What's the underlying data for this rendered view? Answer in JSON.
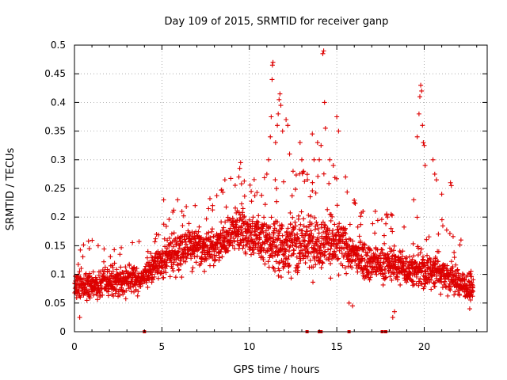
{
  "chart_data": {
    "type": "scatter",
    "title": "Day 109 of 2015, SRMTID for receiver ganp",
    "xlabel": "GPS time / hours",
    "ylabel": "SRMTID / TECUs",
    "xlim": [
      0,
      23.6
    ],
    "ylim": [
      0,
      0.5
    ],
    "xticks": [
      0,
      5,
      10,
      15,
      20
    ],
    "yticks": [
      0,
      0.05,
      0.1,
      0.15,
      0.2,
      0.25,
      0.3,
      0.35,
      0.4,
      0.45,
      0.5
    ],
    "ytick_labels": [
      "0",
      "0.05",
      "0.1",
      "0.15",
      "0.2",
      "0.25",
      "0.3",
      "0.35",
      "0.4",
      "0.45",
      "0.5"
    ],
    "grid": true,
    "marker": "+",
    "color": "#dd0000",
    "envelope": {
      "x": [
        0,
        1,
        2,
        3,
        3.8,
        4.5,
        5.5,
        6.5,
        7.5,
        8.5,
        9.3,
        10,
        11,
        12,
        13,
        14,
        15,
        16,
        17,
        18,
        19,
        20,
        21,
        22,
        22.8
      ],
      "low": [
        0.05,
        0.05,
        0.06,
        0.06,
        0.07,
        0.08,
        0.09,
        0.1,
        0.1,
        0.11,
        0.13,
        0.12,
        0.09,
        0.08,
        0.08,
        0.09,
        0.09,
        0.09,
        0.08,
        0.08,
        0.07,
        0.06,
        0.06,
        0.05,
        0.05
      ],
      "high": [
        0.11,
        0.11,
        0.12,
        0.12,
        0.11,
        0.15,
        0.18,
        0.2,
        0.19,
        0.2,
        0.24,
        0.22,
        0.22,
        0.22,
        0.23,
        0.23,
        0.22,
        0.18,
        0.16,
        0.16,
        0.15,
        0.15,
        0.15,
        0.12,
        0.1
      ]
    },
    "spikes": [
      {
        "x": 0.2,
        "y": 0.095
      },
      {
        "x": 0.8,
        "y": 0.158
      },
      {
        "x": 0.85,
        "y": 0.145
      },
      {
        "x": 2.6,
        "y": 0.135
      },
      {
        "x": 4.2,
        "y": 0.14
      },
      {
        "x": 5.1,
        "y": 0.23
      },
      {
        "x": 5.9,
        "y": 0.23
      },
      {
        "x": 6.9,
        "y": 0.22
      },
      {
        "x": 7.9,
        "y": 0.22
      },
      {
        "x": 8.6,
        "y": 0.265
      },
      {
        "x": 9.4,
        "y": 0.27
      },
      {
        "x": 9.45,
        "y": 0.285
      },
      {
        "x": 9.5,
        "y": 0.295
      },
      {
        "x": 9.55,
        "y": 0.258
      },
      {
        "x": 10.7,
        "y": 0.238
      },
      {
        "x": 11.0,
        "y": 0.275
      },
      {
        "x": 11.1,
        "y": 0.3
      },
      {
        "x": 11.2,
        "y": 0.34
      },
      {
        "x": 11.25,
        "y": 0.375
      },
      {
        "x": 11.3,
        "y": 0.44
      },
      {
        "x": 11.32,
        "y": 0.465
      },
      {
        "x": 11.35,
        "y": 0.47
      },
      {
        "x": 11.5,
        "y": 0.33
      },
      {
        "x": 11.6,
        "y": 0.36
      },
      {
        "x": 11.65,
        "y": 0.38
      },
      {
        "x": 11.7,
        "y": 0.405
      },
      {
        "x": 11.75,
        "y": 0.415
      },
      {
        "x": 11.8,
        "y": 0.395
      },
      {
        "x": 11.9,
        "y": 0.35
      },
      {
        "x": 12.1,
        "y": 0.37
      },
      {
        "x": 12.2,
        "y": 0.36
      },
      {
        "x": 12.3,
        "y": 0.31
      },
      {
        "x": 12.5,
        "y": 0.28
      },
      {
        "x": 12.9,
        "y": 0.33
      },
      {
        "x": 13.0,
        "y": 0.3
      },
      {
        "x": 13.1,
        "y": 0.28
      },
      {
        "x": 13.6,
        "y": 0.345
      },
      {
        "x": 13.7,
        "y": 0.3
      },
      {
        "x": 13.9,
        "y": 0.33
      },
      {
        "x": 14.0,
        "y": 0.3
      },
      {
        "x": 14.1,
        "y": 0.325
      },
      {
        "x": 14.2,
        "y": 0.485
      },
      {
        "x": 14.25,
        "y": 0.49
      },
      {
        "x": 14.3,
        "y": 0.4
      },
      {
        "x": 14.35,
        "y": 0.355
      },
      {
        "x": 14.6,
        "y": 0.3
      },
      {
        "x": 14.8,
        "y": 0.29
      },
      {
        "x": 15.0,
        "y": 0.375
      },
      {
        "x": 15.1,
        "y": 0.35
      },
      {
        "x": 15.5,
        "y": 0.27
      },
      {
        "x": 16.0,
        "y": 0.225
      },
      {
        "x": 16.5,
        "y": 0.21
      },
      {
        "x": 17.2,
        "y": 0.21
      },
      {
        "x": 17.9,
        "y": 0.2
      },
      {
        "x": 18.1,
        "y": 0.18
      },
      {
        "x": 19.4,
        "y": 0.23
      },
      {
        "x": 19.6,
        "y": 0.34
      },
      {
        "x": 19.7,
        "y": 0.38
      },
      {
        "x": 19.75,
        "y": 0.41
      },
      {
        "x": 19.8,
        "y": 0.43
      },
      {
        "x": 19.85,
        "y": 0.42
      },
      {
        "x": 19.9,
        "y": 0.36
      },
      {
        "x": 19.95,
        "y": 0.33
      },
      {
        "x": 20.0,
        "y": 0.325
      },
      {
        "x": 20.05,
        "y": 0.29
      },
      {
        "x": 20.5,
        "y": 0.3
      },
      {
        "x": 20.6,
        "y": 0.275
      },
      {
        "x": 20.7,
        "y": 0.265
      },
      {
        "x": 21.0,
        "y": 0.24
      },
      {
        "x": 21.5,
        "y": 0.26
      },
      {
        "x": 21.55,
        "y": 0.255
      },
      {
        "x": 22.1,
        "y": 0.16
      },
      {
        "x": 18.3,
        "y": 0.035
      },
      {
        "x": 18.2,
        "y": 0.025
      },
      {
        "x": 0.3,
        "y": 0.025
      },
      {
        "x": 15.9,
        "y": 0.045
      },
      {
        "x": 15.7,
        "y": 0.05
      },
      {
        "x": 22.6,
        "y": 0.04
      }
    ],
    "baseline_marks": [
      4.0,
      13.3,
      14.0,
      14.1,
      15.7,
      17.6,
      17.8
    ]
  }
}
